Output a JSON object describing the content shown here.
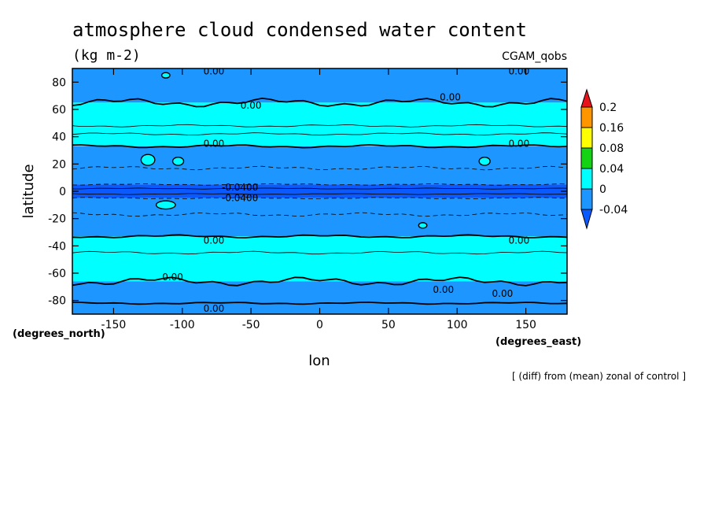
{
  "chart_data": {
    "type": "heatmap",
    "title": "atmosphere cloud condensed water content",
    "subtitle": "(kg m-2)",
    "model_label": "CGAM_qobs",
    "xlabel": "lon",
    "ylabel": "latitude",
    "x_units": "(degrees_east)",
    "y_units": "(degrees_north)",
    "footnote": "[ (diff) from (mean) zonal of control ]",
    "xlim": [
      -180,
      180
    ],
    "ylim": [
      -90,
      90
    ],
    "x_ticks": [
      "-150",
      "-100",
      "-50",
      "0",
      "50",
      "100",
      "150"
    ],
    "x_tick_values": [
      -150,
      -100,
      -50,
      0,
      50,
      100,
      150
    ],
    "y_ticks": [
      "80",
      "60",
      "40",
      "20",
      "0",
      "-20",
      "-40",
      "-60",
      "-80"
    ],
    "y_tick_values": [
      80,
      60,
      40,
      20,
      0,
      -20,
      -40,
      -60,
      -80
    ],
    "colorbar": {
      "levels": [
        "0.2",
        "0.16",
        "0.08",
        "0.04",
        "0",
        "-0.04"
      ],
      "colors": [
        "#e8141c",
        "#ff9600",
        "#ffff00",
        "#14d214",
        "#00ffff",
        "#1e96ff",
        "#0a5aff"
      ]
    },
    "bands": [
      {
        "lat_from": 90,
        "lat_to": 65,
        "color": "#1e96ff"
      },
      {
        "lat_from": 65,
        "lat_to": 33,
        "color": "#00ffff"
      },
      {
        "lat_from": 33,
        "lat_to": 5,
        "color": "#1e96ff"
      },
      {
        "lat_from": 5,
        "lat_to": -5,
        "color": "#0a5aff"
      },
      {
        "lat_from": -5,
        "lat_to": -33,
        "color": "#1e96ff"
      },
      {
        "lat_from": -33,
        "lat_to": -66,
        "color": "#00ffff"
      },
      {
        "lat_from": -66,
        "lat_to": -90,
        "color": "#1e96ff"
      }
    ],
    "contour_labels": [
      {
        "text": "0.00",
        "lon": -77,
        "lat": 88
      },
      {
        "text": "0.00",
        "lon": 145,
        "lat": 88
      },
      {
        "text": "0.00",
        "lon": 95,
        "lat": 69
      },
      {
        "text": "0.00",
        "lon": -50,
        "lat": 63
      },
      {
        "text": "0.00",
        "lon": -77,
        "lat": 35
      },
      {
        "text": "0.00",
        "lon": 145,
        "lat": 35
      },
      {
        "text": "-0.0400",
        "lon": -58,
        "lat": 3
      },
      {
        "text": "-0.0400",
        "lon": -58,
        "lat": -5
      },
      {
        "text": "0.00",
        "lon": -77,
        "lat": -36
      },
      {
        "text": "0.00",
        "lon": 145,
        "lat": -36
      },
      {
        "text": "0.00",
        "lon": -107,
        "lat": -63
      },
      {
        "text": "0.00",
        "lon": 90,
        "lat": -72
      },
      {
        "text": "0.00",
        "lon": 133,
        "lat": -75
      },
      {
        "text": "0.00",
        "lon": -77,
        "lat": -86
      }
    ]
  }
}
